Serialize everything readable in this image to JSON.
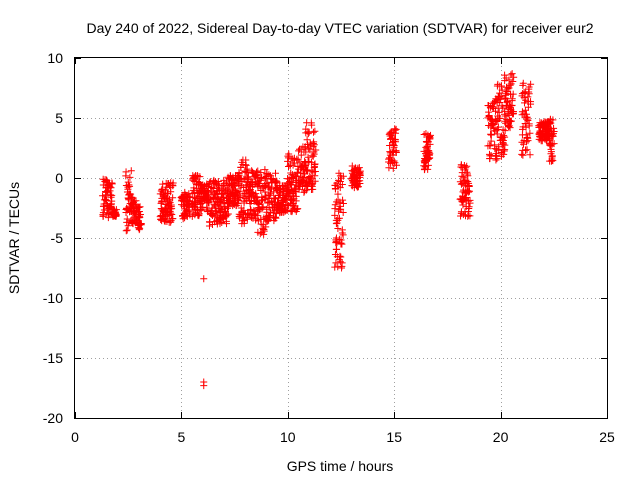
{
  "chart_data": {
    "type": "scatter",
    "title": "Day 240 of 2022, Sidereal Day-to-day VTEC variation (SDTVAR) for receiver eur2",
    "xlabel": "GPS time / hours",
    "ylabel": "SDTVAR / TECUs",
    "xlim": [
      0,
      25
    ],
    "ylim": [
      -20,
      10
    ],
    "xticks": [
      0,
      5,
      10,
      15,
      20,
      25
    ],
    "yticks": [
      -20,
      -15,
      -10,
      -5,
      0,
      5,
      10
    ],
    "grid": true,
    "marker": "plus",
    "colors": {
      "series": "#ff0000",
      "grid": "#a0a0a0",
      "axes": "#000000"
    },
    "series": [
      {
        "name": "SDTVAR",
        "segments": [
          {
            "x0": 1.3,
            "x1": 1.75,
            "ymin": -3.3,
            "ymax": -0.1
          },
          {
            "x0": 1.75,
            "x1": 1.95,
            "ymin": -3.2,
            "ymax": -2.6
          },
          {
            "x0": 2.4,
            "x1": 2.65,
            "ymin": -4.4,
            "ymax": 0.6
          },
          {
            "x0": 2.65,
            "x1": 2.9,
            "ymin": -3.8,
            "ymax": -1.6
          },
          {
            "x0": 2.95,
            "x1": 3.1,
            "ymin": -4.3,
            "ymax": -2.4
          },
          {
            "x0": 4.0,
            "x1": 4.6,
            "ymin": -3.7,
            "ymax": -0.4
          },
          {
            "x0": 5.0,
            "x1": 5.4,
            "ymin": -3.4,
            "ymax": -1.2
          },
          {
            "x0": 5.5,
            "x1": 5.9,
            "ymin": -3.2,
            "ymax": 0.2
          },
          {
            "x0": 5.9,
            "x1": 6.3,
            "ymin": -2.8,
            "ymax": -0.5
          },
          {
            "x0": 6.3,
            "x1": 6.7,
            "ymin": -4.0,
            "ymax": -0.2
          },
          {
            "x0": 6.7,
            "x1": 7.2,
            "ymin": -3.8,
            "ymax": -0.2
          },
          {
            "x0": 7.2,
            "x1": 7.7,
            "ymin": -2.3,
            "ymax": 0.2
          },
          {
            "x0": 7.7,
            "x1": 8.1,
            "ymin": -3.8,
            "ymax": 1.5
          },
          {
            "x0": 8.1,
            "x1": 8.6,
            "ymin": -3.5,
            "ymax": 0.6
          },
          {
            "x0": 8.6,
            "x1": 9.0,
            "ymin": -4.7,
            "ymax": 0.7
          },
          {
            "x0": 9.0,
            "x1": 9.5,
            "ymin": -3.6,
            "ymax": 0.4
          },
          {
            "x0": 9.5,
            "x1": 10.0,
            "ymin": -2.9,
            "ymax": -0.6
          },
          {
            "x0": 10.0,
            "x1": 10.5,
            "ymin": -2.8,
            "ymax": 2.0
          },
          {
            "x0": 10.5,
            "x1": 10.85,
            "ymin": -1.2,
            "ymax": 2.6
          },
          {
            "x0": 10.85,
            "x1": 11.3,
            "ymin": -1.0,
            "ymax": 4.6
          },
          {
            "x0": 12.2,
            "x1": 12.6,
            "ymin": -7.5,
            "ymax": 0.4
          },
          {
            "x0": 13.0,
            "x1": 13.4,
            "ymin": -0.8,
            "ymax": 1.0
          },
          {
            "x0": 14.75,
            "x1": 15.1,
            "ymin": 0.8,
            "ymax": 4.1
          },
          {
            "x0": 16.4,
            "x1": 16.7,
            "ymin": 0.7,
            "ymax": 3.7
          },
          {
            "x0": 18.1,
            "x1": 18.55,
            "ymin": -3.2,
            "ymax": 1.1
          },
          {
            "x0": 19.4,
            "x1": 19.85,
            "ymin": 1.5,
            "ymax": 6.6
          },
          {
            "x0": 19.85,
            "x1": 20.2,
            "ymin": 1.8,
            "ymax": 7.8
          },
          {
            "x0": 20.2,
            "x1": 20.6,
            "ymin": 4.2,
            "ymax": 8.7
          },
          {
            "x0": 21.0,
            "x1": 21.4,
            "ymin": 1.9,
            "ymax": 7.9
          },
          {
            "x0": 21.8,
            "x1": 22.3,
            "ymin": 3.1,
            "ymax": 4.7
          },
          {
            "x0": 22.3,
            "x1": 22.5,
            "ymin": 1.4,
            "ymax": 4.9
          }
        ],
        "outliers": [
          {
            "x": 6.05,
            "y": -8.4
          },
          {
            "x": 6.05,
            "y": -17.0
          },
          {
            "x": 6.05,
            "y": -17.3
          }
        ]
      }
    ]
  }
}
